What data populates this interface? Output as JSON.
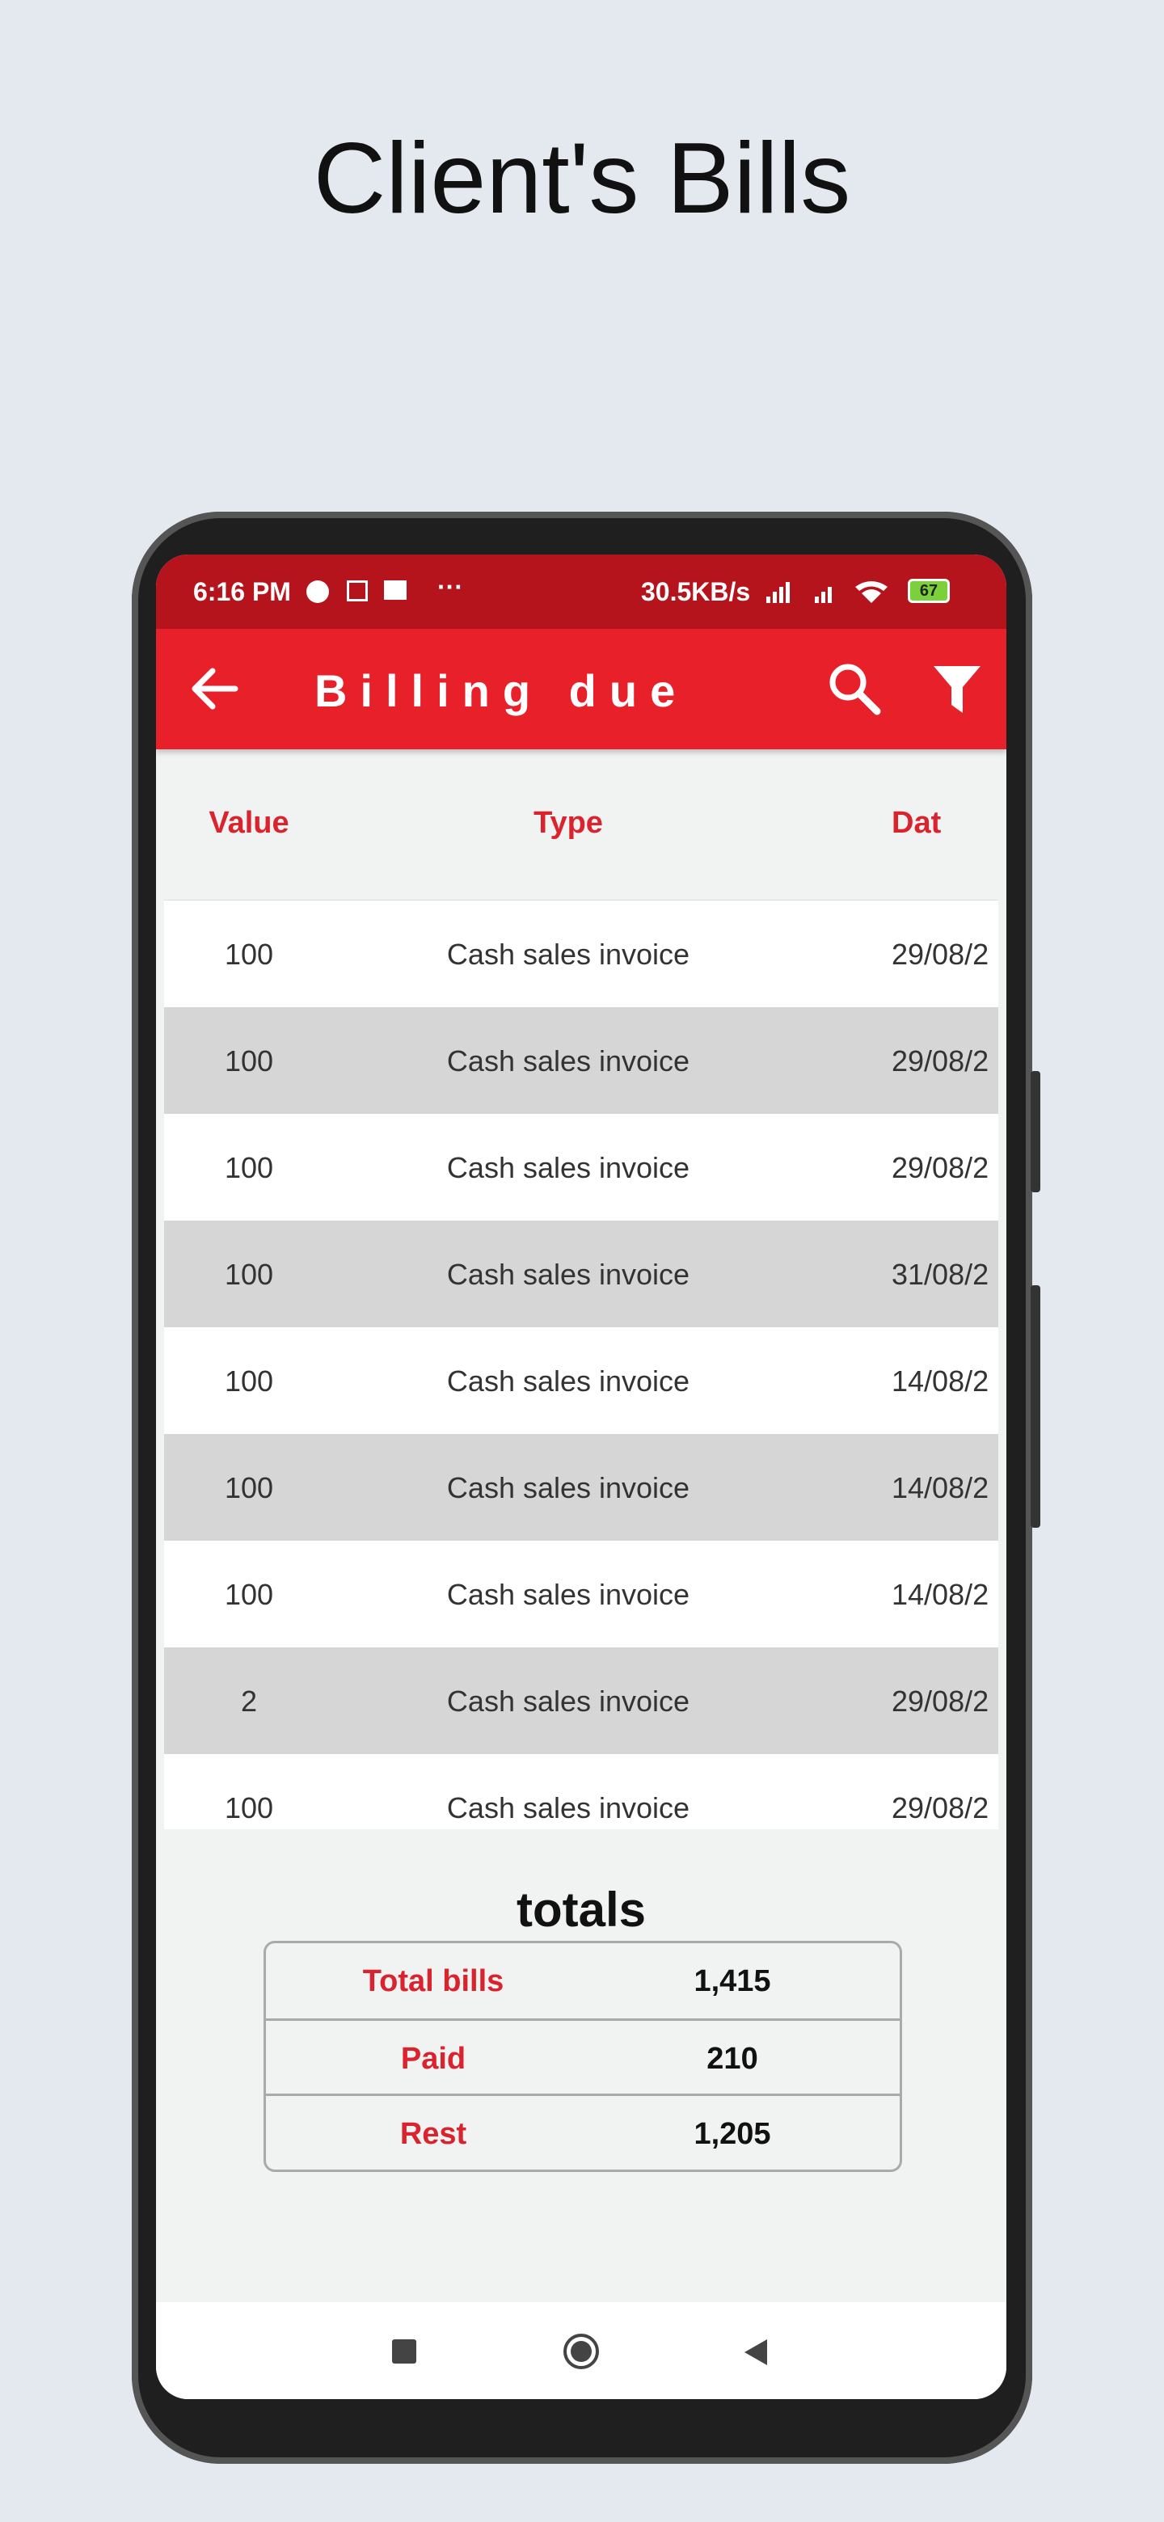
{
  "header": {
    "title": "Client's Bills"
  },
  "status_bar": {
    "time": "6:16 PM",
    "speed": "30.5KB/s",
    "battery": "67"
  },
  "app_bar": {
    "title": "Billing due"
  },
  "table": {
    "columns": [
      "Value",
      "Type",
      "Dat"
    ],
    "rows": [
      [
        "100",
        "Cash sales invoice",
        "29/08/2"
      ],
      [
        "100",
        "Cash sales invoice",
        "29/08/2"
      ],
      [
        "100",
        "Cash sales invoice",
        "29/08/2"
      ],
      [
        "100",
        "Cash sales invoice",
        "31/08/2"
      ],
      [
        "100",
        "Cash sales invoice",
        "14/08/2"
      ],
      [
        "100",
        "Cash sales invoice",
        "14/08/2"
      ],
      [
        "100",
        "Cash sales invoice",
        "14/08/2"
      ],
      [
        "2",
        "Cash sales invoice",
        "29/08/2"
      ],
      [
        "100",
        "Cash sales invoice",
        "29/08/2"
      ]
    ]
  },
  "totals": {
    "title": "totals",
    "rows": [
      [
        "Total bills",
        "1,415"
      ],
      [
        "Paid",
        "210"
      ],
      [
        "Rest",
        "1,205"
      ]
    ]
  }
}
